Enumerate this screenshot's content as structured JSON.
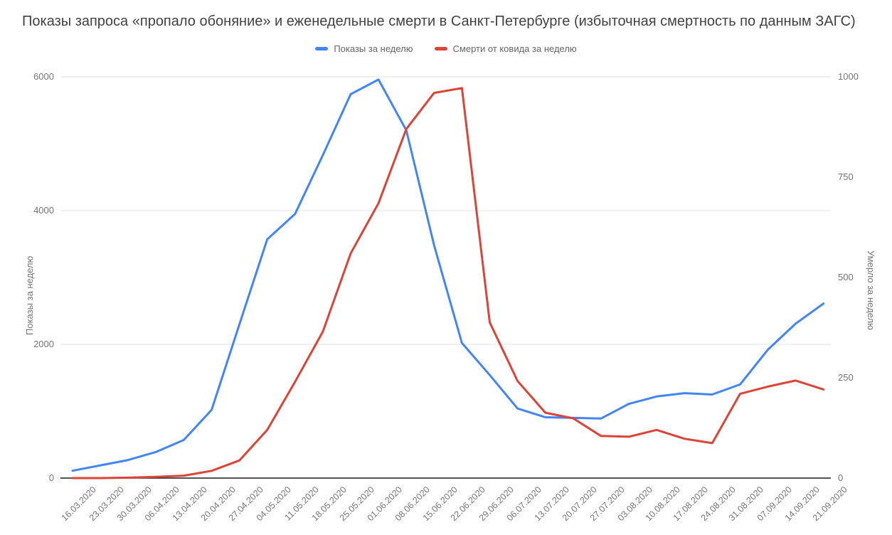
{
  "chart_data": {
    "type": "line",
    "title": "Показы запроса «пропало обоняние» и еженедельные смерти в Санкт-Петербурге (избыточная смертность по данным ЗАГС)",
    "legend_position": "top",
    "grid": "horizontal",
    "categories": [
      "16.03.2020",
      "23.03.2020",
      "30.03.2020",
      "06.04.2020",
      "13.04.2020",
      "20.04.2020",
      "27.04.2020",
      "04.05.2020",
      "11.05.2020",
      "18.05.2020",
      "25.05.2020",
      "01.06.2020",
      "08.06.2020",
      "15.06.2020",
      "22.06.2020",
      "29.06.2020",
      "06.07.2020",
      "13.07.2020",
      "20.07.2020",
      "27.07.2020",
      "03.08.2020",
      "10.08.2020",
      "17.08.2020",
      "24.08.2020",
      "31.08.2020",
      "07.09.2020",
      "14.09.2020",
      "21.09.2020"
    ],
    "series": [
      {
        "name": "Показы за неделю",
        "axis": "left",
        "color": "#4285F4",
        "values": [
          110,
          190,
          270,
          390,
          570,
          1020,
          2300,
          3570,
          3950,
          4830,
          5740,
          5960,
          5200,
          3480,
          2020,
          1540,
          1040,
          910,
          900,
          890,
          1110,
          1220,
          1270,
          1250,
          1400,
          1920,
          2310,
          2610
        ]
      },
      {
        "name": "Смерти от ковида за неделю",
        "axis": "right",
        "color": "#DB4437",
        "values": [
          0,
          0,
          1,
          3,
          6,
          18,
          44,
          120,
          240,
          365,
          560,
          685,
          870,
          960,
          972,
          388,
          242,
          163,
          149,
          105,
          103,
          120,
          98,
          87,
          210,
          228,
          243,
          221
        ]
      }
    ],
    "axes": {
      "left": {
        "title": "Показы за неделю",
        "ticks": [
          0,
          2000,
          4000,
          6000
        ],
        "lim": [
          0,
          6000
        ]
      },
      "right": {
        "title": "Умерло за неделю",
        "ticks": [
          0,
          250,
          500,
          750,
          1000
        ],
        "lim": [
          0,
          1000
        ]
      }
    },
    "colors": {
      "grid": "#e3e3e3",
      "axis_line": "#1a1a1a",
      "tick_label": "#757575",
      "title": "#424242",
      "legend_label": "#666666"
    }
  }
}
